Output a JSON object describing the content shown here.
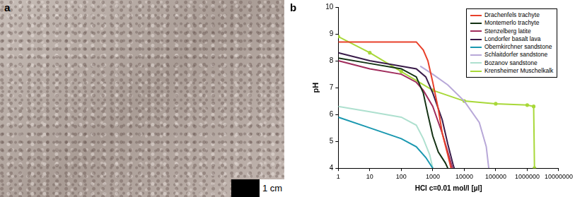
{
  "panel_a": {
    "label": "a",
    "scale_bar": "1 cm"
  },
  "chart_data": {
    "type": "line",
    "title": "b",
    "x_label": "HCl c=0.01 mol/l [µl]",
    "y_label": "pH",
    "log": "x",
    "grid": false,
    "legend": "top-right",
    "xlim": [
      1,
      10000000
    ],
    "xticks": [
      1,
      10,
      100,
      1000,
      10000,
      100000,
      1000000,
      10000000
    ],
    "ylim": [
      4,
      10
    ],
    "yticks": [
      4,
      5,
      6,
      7,
      8,
      9,
      10
    ],
    "series": [
      {
        "name": "Drachenfels trachyte",
        "color": "#e8402a",
        "x": [
          1,
          300,
          500,
          700,
          1000,
          1500,
          2000,
          3000,
          3800
        ],
        "values": [
          8.7,
          8.7,
          8.4,
          8.0,
          7.2,
          6.2,
          5.3,
          4.5,
          4.0
        ]
      },
      {
        "name": "Montemerlo trachyte",
        "color": "#143214",
        "x": [
          1,
          10,
          100,
          300,
          500,
          700,
          1000,
          1500,
          2500,
          3000
        ],
        "values": [
          8.1,
          7.9,
          7.7,
          7.4,
          6.8,
          6.0,
          5.2,
          4.6,
          4.2,
          4.0
        ]
      },
      {
        "name": "Stenzelberg latite",
        "color": "#a02c5c",
        "x": [
          1,
          10,
          100,
          300,
          500,
          1000,
          2000,
          3000,
          4000,
          4200
        ],
        "values": [
          8.0,
          7.7,
          7.5,
          7.2,
          6.9,
          6.3,
          5.3,
          4.6,
          4.1,
          4.0
        ]
      },
      {
        "name": "Londorfer basalt lava",
        "color": "#3a1c4a",
        "x": [
          1,
          10,
          100,
          300,
          600,
          1000,
          2000,
          3000,
          4500,
          4800
        ],
        "values": [
          8.3,
          8.0,
          7.8,
          7.7,
          7.4,
          6.8,
          5.8,
          4.9,
          4.1,
          4.0
        ]
      },
      {
        "name": "Obernkirchner sandstone",
        "color": "#1a98b0",
        "x": [
          1,
          10,
          100,
          300,
          600,
          1000
        ],
        "values": [
          5.9,
          5.5,
          5.1,
          4.8,
          4.4,
          4.0
        ]
      },
      {
        "name": "Schlaitdorfer sandstone",
        "color": "#b8a8d8",
        "x": [
          400,
          1000,
          3000,
          10000,
          30000,
          50000,
          60000
        ],
        "values": [
          7.8,
          7.5,
          7.1,
          6.5,
          5.7,
          4.8,
          4.0
        ]
      },
      {
        "name": "Bozanov sandstone",
        "color": "#aee0cf",
        "x": [
          1,
          10,
          100,
          300,
          500,
          800,
          1000
        ],
        "values": [
          6.3,
          6.1,
          5.9,
          5.6,
          5.1,
          4.5,
          4.0
        ]
      },
      {
        "name": "Krensheimer Muschelkalk",
        "color": "#a8d838",
        "marker": "circle",
        "x": [
          1,
          10,
          100,
          1000,
          10000,
          100000,
          1000000,
          1600000,
          1700000
        ],
        "values": [
          8.9,
          8.3,
          7.6,
          6.9,
          6.5,
          6.4,
          6.35,
          6.3,
          4.0
        ]
      }
    ]
  }
}
